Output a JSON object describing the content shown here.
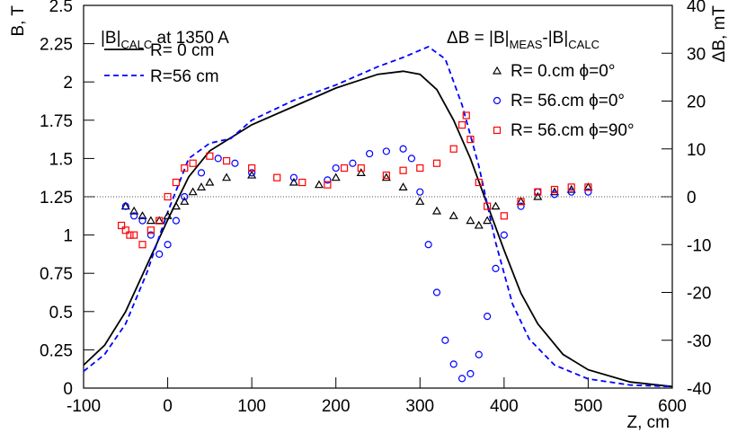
{
  "chart_data": {
    "type": "line",
    "annotations": {
      "left": [
        "|B|",
        "CALC",
        " at 1350 A"
      ],
      "right": [
        "ΔB = |B|",
        "MEAS",
        "-|B|",
        "CALC"
      ]
    },
    "x_label": "Z, cm",
    "y_label": "B, T",
    "y2_label": "ΔB, mT",
    "xlim": [
      -100,
      600
    ],
    "xticks": [
      -100,
      0,
      100,
      200,
      300,
      400,
      500,
      600
    ],
    "ylim": [
      0,
      2.5
    ],
    "yticks": [
      0,
      0.25,
      0.5,
      0.75,
      1,
      1.25,
      1.5,
      1.75,
      2,
      2.25,
      2.5
    ],
    "y2lim": [
      -40,
      40
    ],
    "y2ticks": [
      -40,
      -30,
      -20,
      -10,
      0,
      10,
      20,
      30,
      40
    ],
    "y2_reference_line": 0,
    "series": [
      {
        "name": "R=  0 cm",
        "color": "#000000",
        "mode": "line",
        "dash": false,
        "x": [
          -100,
          -75,
          -50,
          -25,
          0,
          25,
          50,
          100,
          150,
          200,
          250,
          280,
          300,
          320,
          340,
          360,
          380,
          400,
          420,
          440,
          470,
          500,
          550,
          600
        ],
        "values": [
          0.15,
          0.28,
          0.5,
          0.8,
          1.1,
          1.38,
          1.55,
          1.72,
          1.84,
          1.96,
          2.05,
          2.07,
          2.05,
          1.95,
          1.75,
          1.5,
          1.2,
          0.9,
          0.62,
          0.42,
          0.22,
          0.12,
          0.04,
          0.01
        ]
      },
      {
        "name": "R=56 cm",
        "color": "#0000ff",
        "mode": "line",
        "dash": true,
        "x": [
          -100,
          -75,
          -50,
          -25,
          0,
          25,
          50,
          75,
          100,
          150,
          200,
          250,
          280,
          310,
          330,
          350,
          370,
          390,
          410,
          430,
          460,
          500,
          550,
          600
        ],
        "values": [
          0.11,
          0.22,
          0.42,
          0.75,
          1.15,
          1.5,
          1.6,
          1.63,
          1.75,
          1.88,
          1.98,
          2.1,
          2.16,
          2.23,
          2.15,
          1.85,
          1.45,
          0.95,
          0.55,
          0.32,
          0.15,
          0.06,
          0.02,
          0.01
        ]
      },
      {
        "name": "R=  0.cm ϕ=0°",
        "color": "#000000",
        "mode": "markers",
        "marker": "triangle",
        "axis": "y2",
        "x": [
          -50,
          -40,
          -30,
          -20,
          -10,
          0,
          10,
          20,
          30,
          40,
          50,
          70,
          100,
          150,
          180,
          200,
          230,
          260,
          280,
          300,
          320,
          340,
          360,
          370,
          380,
          390,
          420,
          440,
          460,
          480,
          500
        ],
        "values": [
          -2,
          -3,
          -4,
          -5,
          -5,
          -4,
          -2,
          -1,
          1,
          2,
          3,
          4,
          4.5,
          3,
          2.5,
          4,
          5,
          4,
          2,
          -1,
          -3,
          -4,
          -5,
          -6,
          -5,
          -2,
          -1,
          0,
          1,
          1.5,
          2
        ]
      },
      {
        "name": "R= 56.cm ϕ=0°",
        "color": "#0000ff",
        "mode": "markers",
        "marker": "circle",
        "axis": "y2",
        "x": [
          -50,
          -40,
          -30,
          -20,
          -10,
          0,
          10,
          20,
          40,
          60,
          80,
          100,
          150,
          190,
          200,
          220,
          240,
          260,
          280,
          290,
          300,
          310,
          320,
          330,
          340,
          350,
          360,
          370,
          380,
          390,
          400,
          420,
          440,
          460,
          480,
          500
        ],
        "values": [
          -2,
          -4,
          -5,
          -8,
          -12,
          -10,
          -5,
          0,
          5,
          8,
          7,
          5,
          4,
          3.5,
          6,
          7,
          9,
          9.5,
          10,
          8,
          1,
          -10,
          -20,
          -30,
          -35,
          -38,
          -37,
          -33,
          -25,
          -15,
          -8,
          -2,
          1,
          0.5,
          1,
          1
        ]
      },
      {
        "name": "R= 56.cm ϕ=90°",
        "color": "#ff0000",
        "mode": "markers",
        "marker": "square",
        "axis": "y2",
        "x": [
          -55,
          -50,
          -45,
          -40,
          -30,
          -20,
          -10,
          0,
          10,
          20,
          30,
          50,
          70,
          100,
          130,
          160,
          190,
          210,
          230,
          260,
          280,
          300,
          320,
          340,
          350,
          355,
          360,
          370,
          380,
          400,
          420,
          440,
          460,
          480,
          500
        ],
        "values": [
          -6,
          -7,
          -8,
          -8,
          -10,
          -7,
          -5,
          0,
          3,
          6,
          7,
          8.5,
          7.5,
          6,
          4,
          3,
          2.5,
          6,
          6,
          4.5,
          5.5,
          6,
          7,
          10,
          15,
          17,
          12,
          3,
          -2,
          -4,
          -1,
          1,
          1.5,
          2,
          2
        ]
      }
    ]
  }
}
